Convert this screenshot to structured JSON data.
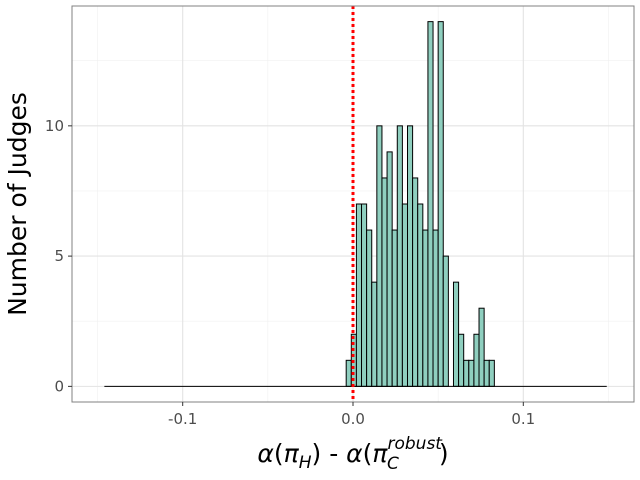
{
  "chart_data": {
    "type": "bar",
    "title": "",
    "xlabel_parts": {
      "alpha": "α",
      "open": "(",
      "pi": "π",
      "sub_h": "H",
      "close": ")",
      "minus": " - ",
      "sub_c": "C",
      "sup_robust": "robust"
    },
    "ylabel": "Number of Judges",
    "xlim": [
      -0.165,
      0.165
    ],
    "ylim": [
      -0.6,
      14.6
    ],
    "x_ticks": [
      -0.1,
      0.0,
      0.1
    ],
    "x_tick_labels": [
      "-0.1",
      "0.0",
      "0.1"
    ],
    "y_ticks": [
      0,
      5,
      10
    ],
    "y_tick_labels": [
      "0",
      "5",
      "10"
    ],
    "grid": true,
    "reference_line": {
      "x": 0.0,
      "color": "#ff0000",
      "style": "dotted"
    },
    "baseline_range": [
      -0.146,
      0.149
    ],
    "bin_width": 0.003,
    "bin_starts": [
      -0.004,
      -0.001,
      0.002,
      0.005,
      0.008,
      0.011,
      0.014,
      0.017,
      0.02,
      0.023,
      0.026,
      0.029,
      0.032,
      0.035,
      0.038,
      0.041,
      0.044,
      0.047,
      0.05,
      0.053,
      0.056,
      0.059,
      0.062,
      0.065,
      0.068,
      0.071,
      0.074,
      0.077,
      0.08,
      0.083
    ],
    "counts": [
      1,
      2,
      7,
      7,
      6,
      4,
      10,
      8,
      9,
      6,
      10,
      7,
      10,
      8,
      7,
      6,
      14,
      6,
      14,
      5,
      0,
      4,
      2,
      1,
      1,
      2,
      3,
      1,
      1,
      0
    ],
    "bar_fill": "#8fcfbf",
    "bar_stroke": "#000000"
  }
}
